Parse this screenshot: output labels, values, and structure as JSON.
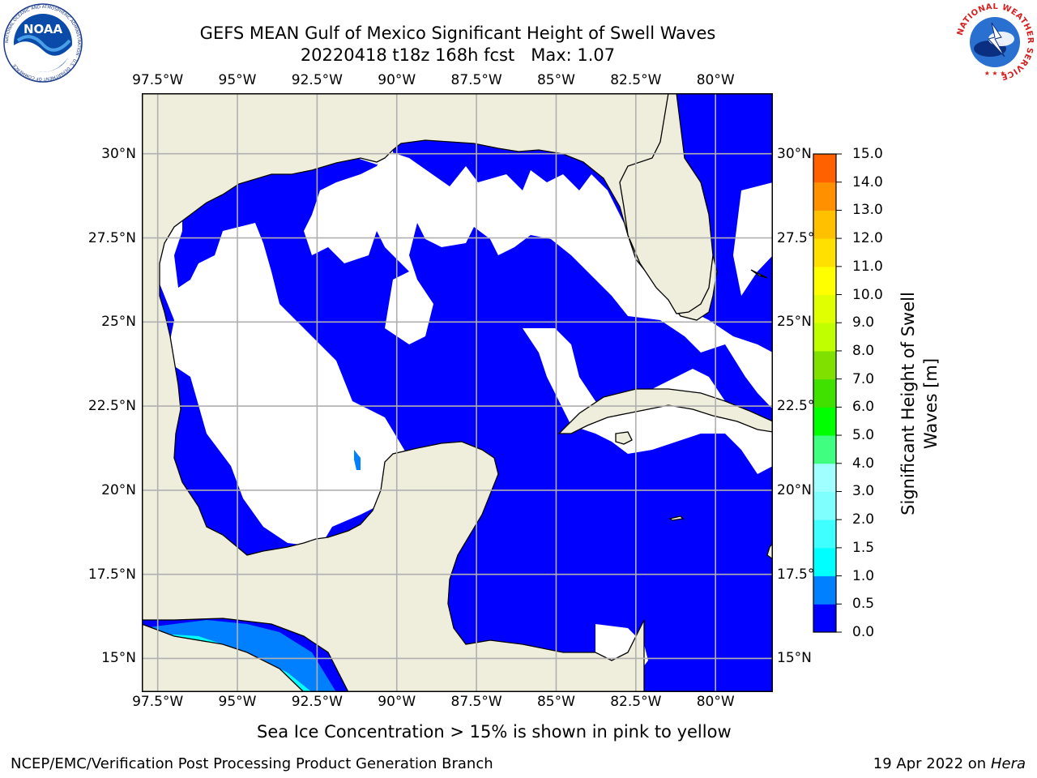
{
  "title": {
    "line1": "GEFS MEAN Gulf of Mexico Significant Height of Swell Waves",
    "line2": "20220418 t18z 168h fcst   Max: 1.07"
  },
  "map": {
    "lon_ticks": [
      "97.5°W",
      "95°W",
      "92.5°W",
      "90°W",
      "87.5°W",
      "85°W",
      "82.5°W",
      "80°W"
    ],
    "lat_ticks": [
      "30°N",
      "27.5°N",
      "25°N",
      "22.5°N",
      "20°N",
      "17.5°N",
      "15°N"
    ],
    "lon_values": [
      -97.5,
      -95,
      -92.5,
      -90,
      -87.5,
      -85,
      -82.5,
      -80
    ],
    "lat_values": [
      30,
      27.5,
      25,
      22.5,
      20,
      17.5,
      15
    ],
    "extent": {
      "lon": [
        -98,
        -78.2
      ],
      "lat": [
        14,
        31.8
      ]
    },
    "grid": true,
    "colors": {
      "ocean_low": "#0000ff",
      "land": "#efeedc",
      "coast": "#000000",
      "grid": "#b0b0b0"
    }
  },
  "colorbar": {
    "label_line1": "Significant Height of Swell",
    "label_line2": "Waves [m]",
    "ticks": [
      "0.0",
      "0.5",
      "1.0",
      "1.5",
      "2.0",
      "3.0",
      "4.0",
      "5.0",
      "6.0",
      "7.0",
      "8.0",
      "9.0",
      "10.0",
      "11.0",
      "12.0",
      "13.0",
      "14.0",
      "15.0"
    ],
    "colors": [
      "#0000ff",
      "#0080ff",
      "#00ffff",
      "#40ffff",
      "#80ffff",
      "#a0ffff",
      "#40ff80",
      "#00ff00",
      "#40e000",
      "#80e000",
      "#c0ff00",
      "#e0ff00",
      "#ffff00",
      "#ffe000",
      "#ffc000",
      "#ff9000",
      "#ff6000",
      "#ff3000",
      "#ff0000"
    ]
  },
  "note": "Sea Ice Concentration > 15% is shown in pink to yellow",
  "footer": {
    "left": "NCEP/EMC/Verification Post Processing Product Generation Branch",
    "date": "19 Apr 2022 on ",
    "machine": "Hera"
  },
  "logos": {
    "noaa": {
      "text": "NOAA",
      "ring": "NATIONAL OCEANIC AND ATMOSPHERIC ADMINISTRATION · U.S. DEPARTMENT OF COMMERCE"
    },
    "nws": {
      "ring": "NATIONAL WEATHER SERVICE"
    }
  }
}
